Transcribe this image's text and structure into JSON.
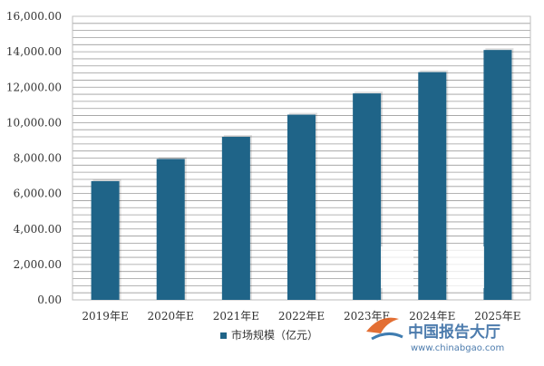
{
  "chart_data": {
    "type": "bar",
    "categories": [
      "2019年E",
      "2020年E",
      "2021年E",
      "2022年E",
      "2023年E",
      "2024年E",
      "2025年E"
    ],
    "series": [
      {
        "name": "市场规模（亿元）",
        "values": [
          6700,
          7950,
          9200,
          10450,
          11650,
          12850,
          14100
        ]
      }
    ],
    "yticks": [
      "0.00",
      "2,000.00",
      "4,000.00",
      "6,000.00",
      "8,000.00",
      "10,000.00",
      "12,000.00",
      "14,000.00",
      "16,000.00"
    ],
    "ylim": [
      0,
      16000
    ],
    "grid": true,
    "legend_position": "bottom",
    "colors": {
      "bar": "#1f6488",
      "grid": "#9c9c9c",
      "plot_bg": "#f2f2f2"
    }
  },
  "watermark": {
    "text_cn": "中国报告大厅",
    "text_en": "www.chinabgao.com"
  }
}
